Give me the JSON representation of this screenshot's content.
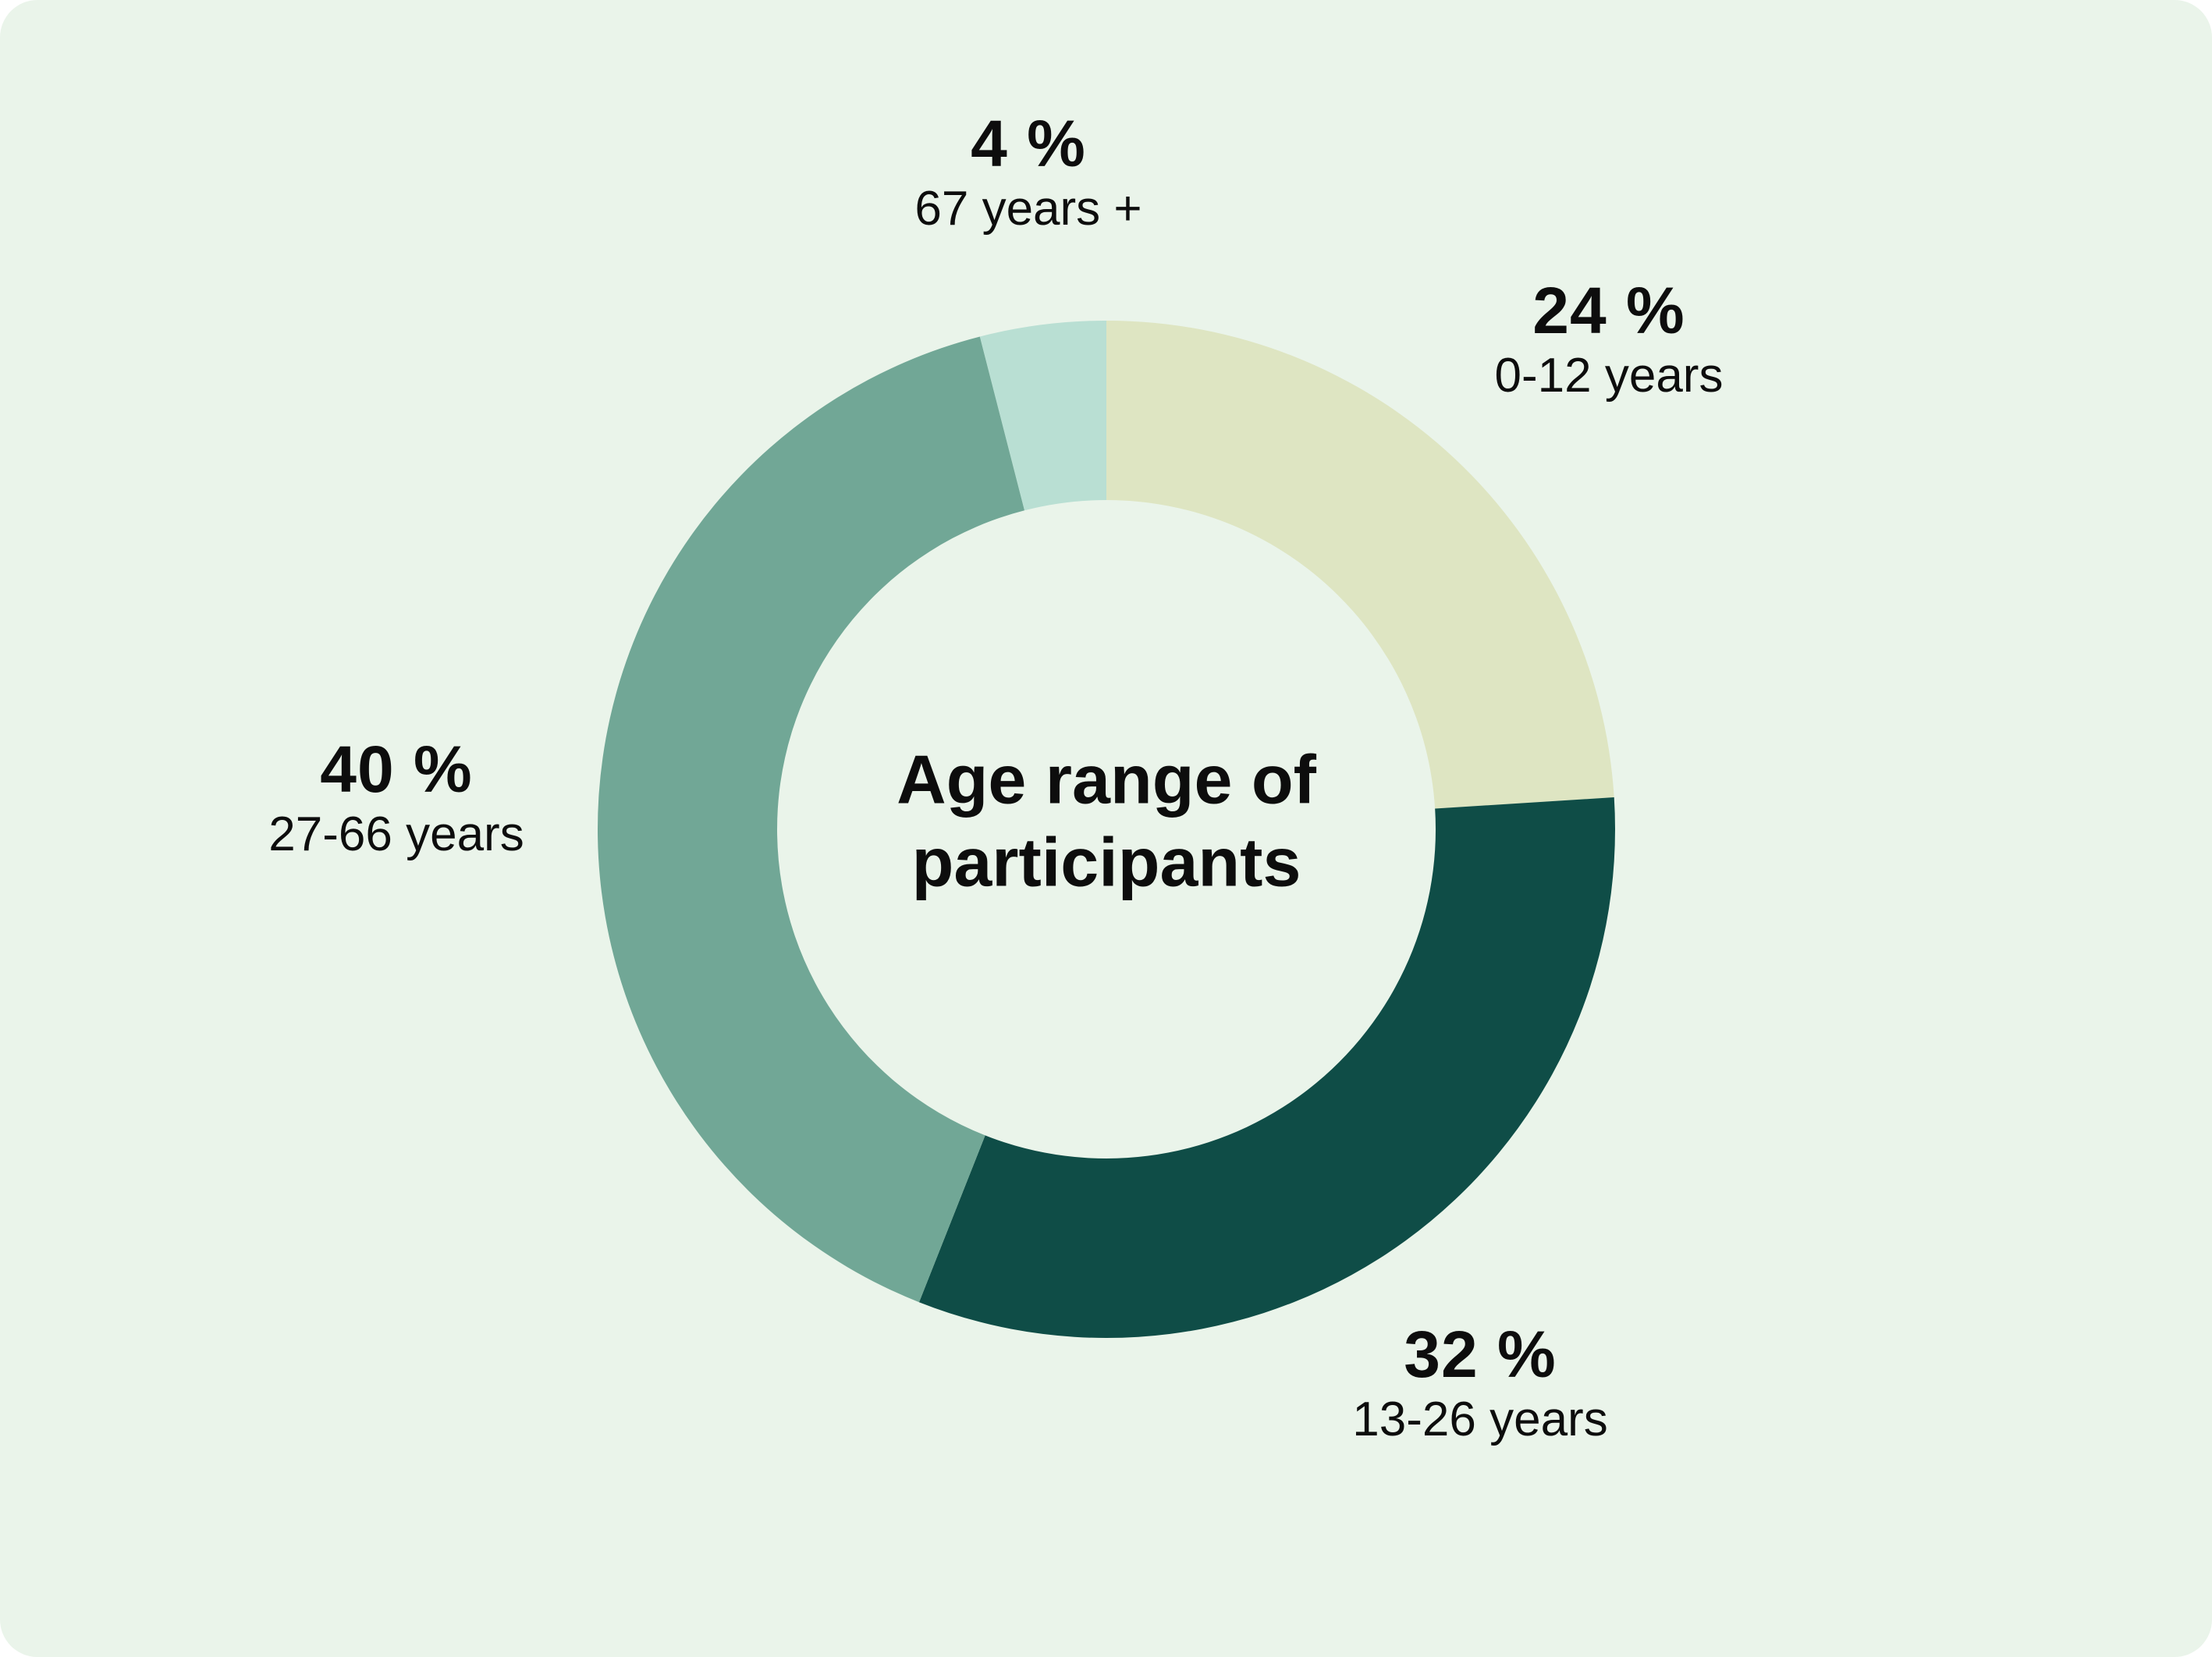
{
  "colors": {
    "background": "#eaf4ea",
    "slice_0_12": "#dee5c2",
    "slice_13_26": "#0f4d47",
    "slice_27_66": "#71a796",
    "slice_67_plus": "#b9dfd3"
  },
  "chart_data": {
    "type": "pie",
    "donut": true,
    "title": "Age range of participants",
    "slices": [
      {
        "label": "0-12 years",
        "value": 24,
        "value_label": "24 %",
        "color": "#dee5c2"
      },
      {
        "label": "13-26 years",
        "value": 32,
        "value_label": "32 %",
        "color": "#0f4d47"
      },
      {
        "label": "27-66 years",
        "value": 40,
        "value_label": "40 %",
        "color": "#71a796"
      },
      {
        "label": "67 years +",
        "value": 4,
        "value_label": "4 %",
        "color": "#b9dfd3"
      }
    ]
  }
}
